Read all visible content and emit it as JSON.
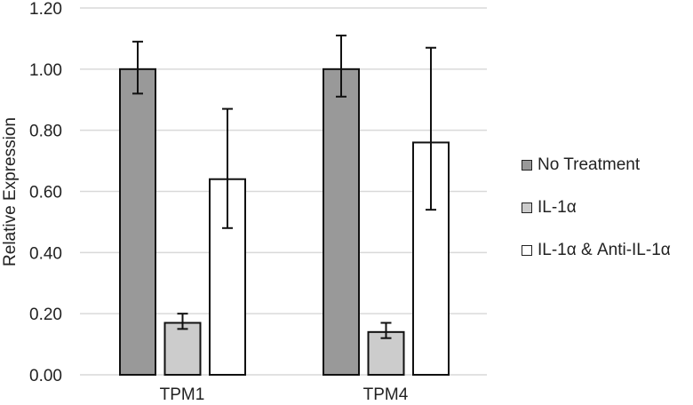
{
  "chart_data": {
    "type": "bar",
    "title": "",
    "xlabel": "",
    "ylabel": "Relative Expression",
    "ylim": [
      0,
      1.2
    ],
    "yticks": [
      "0.00",
      "0.20",
      "0.40",
      "0.60",
      "0.80",
      "1.00",
      "1.20"
    ],
    "categories": [
      "TPM1",
      "TPM4"
    ],
    "grid": true,
    "legend_position": "right",
    "series": [
      {
        "name": "No Treatment",
        "color": "#999999",
        "values": [
          1.0,
          1.0
        ],
        "error_low": [
          0.92,
          0.91
        ],
        "error_high": [
          1.09,
          1.11
        ]
      },
      {
        "name": "IL-1α",
        "color": "#cccccc",
        "values": [
          0.17,
          0.14
        ],
        "error_low": [
          0.15,
          0.12
        ],
        "error_high": [
          0.2,
          0.17
        ]
      },
      {
        "name": "IL-1α & Anti-IL-1α",
        "color": "#ffffff",
        "values": [
          0.64,
          0.76
        ],
        "error_low": [
          0.48,
          0.54
        ],
        "error_high": [
          0.87,
          1.07
        ]
      }
    ]
  },
  "legend": {
    "items": [
      "No Treatment",
      "IL-1α",
      "IL-1α & Anti-IL-1α"
    ]
  }
}
